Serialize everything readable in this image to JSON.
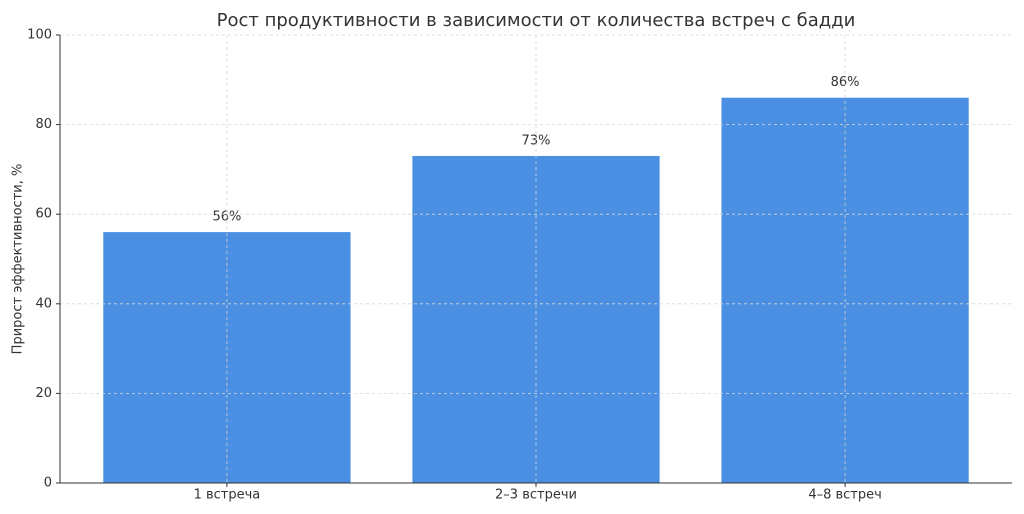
{
  "chart_data": {
    "type": "bar",
    "title": "Рост продуктивности в зависимости от количества встреч с бадди",
    "y_label": "Прирост эффективности, %",
    "categories": [
      "1 встреча",
      "2–3 встречи",
      "4–8 встреч"
    ],
    "values": [
      56,
      73,
      86
    ],
    "value_labels": [
      "56%",
      "73%",
      "86%"
    ],
    "color": "#4a8fe2",
    "ylim": [
      0,
      100
    ],
    "yticks": [
      0,
      20,
      40,
      60,
      80,
      100
    ],
    "grid": true
  }
}
